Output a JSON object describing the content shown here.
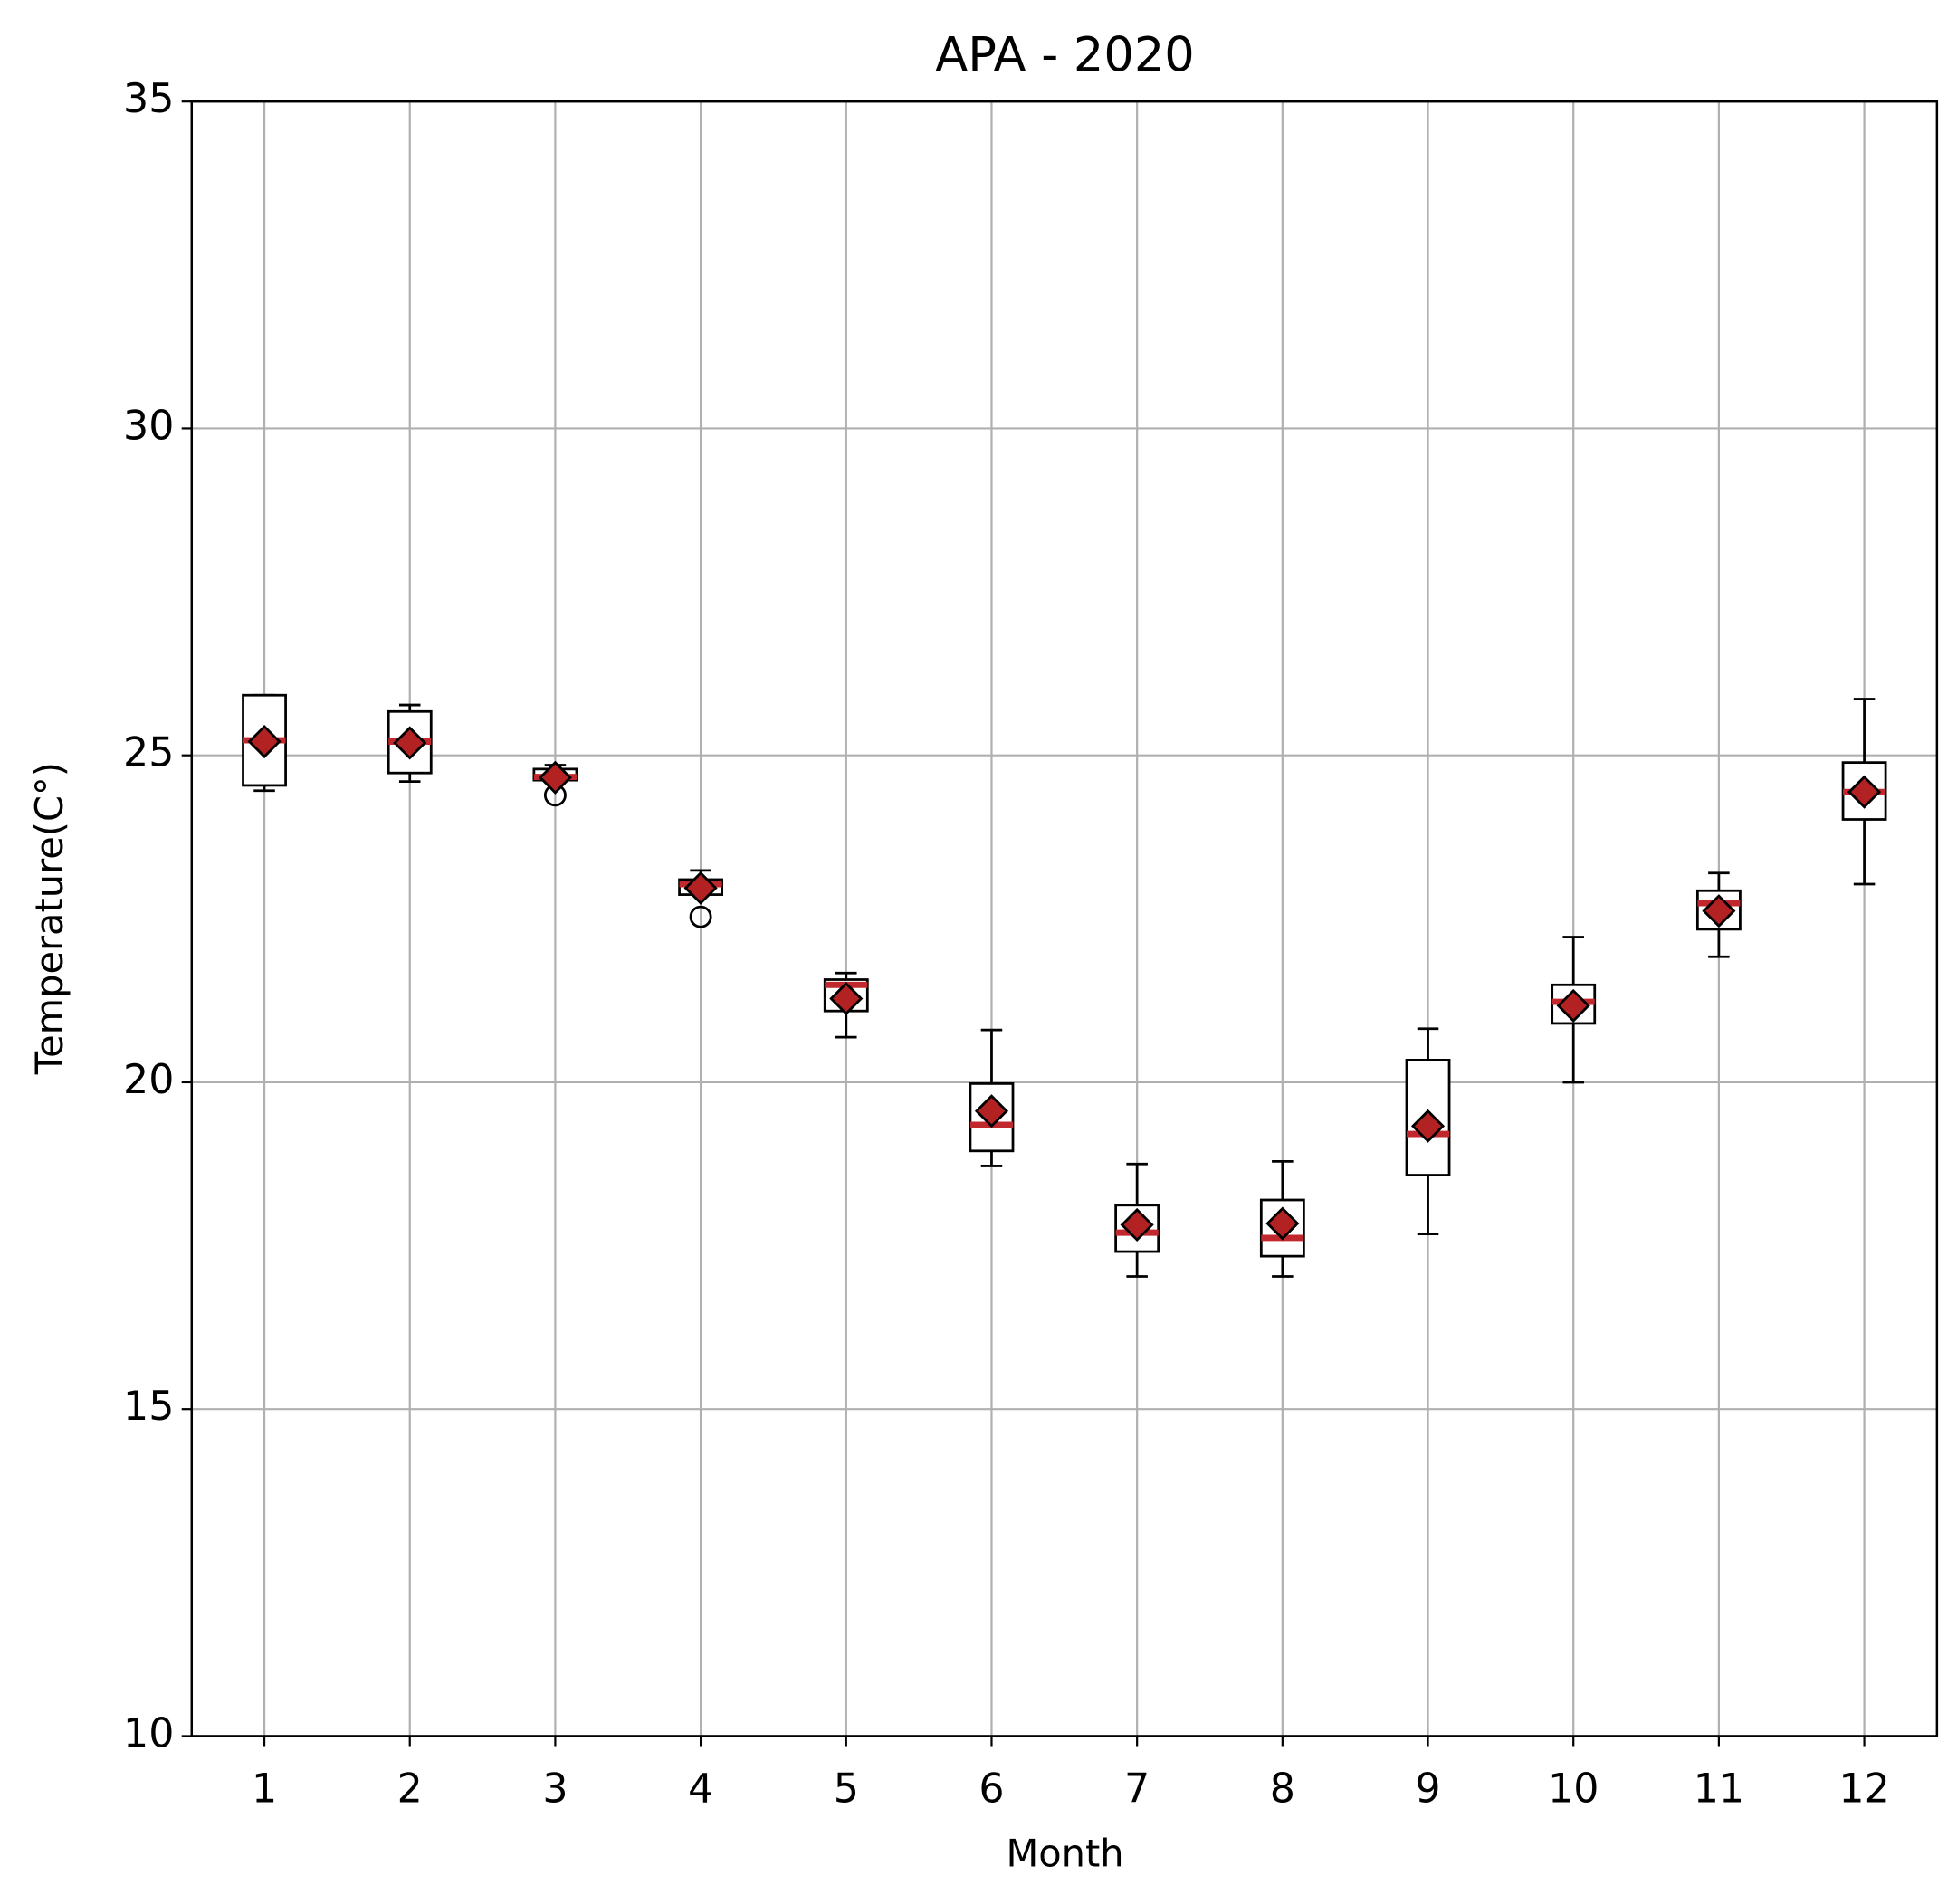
{
  "chart_data": {
    "type": "box",
    "title": "APA - 2020",
    "x_label": "Month",
    "y_label": "Temperature(C°)",
    "categories": [
      "1",
      "2",
      "3",
      "4",
      "5",
      "6",
      "7",
      "8",
      "9",
      "10",
      "11",
      "12"
    ],
    "min": [
      24.46,
      24.6,
      24.6,
      22.87,
      20.69,
      18.72,
      17.03,
      17.03,
      17.68,
      20.0,
      21.92,
      23.03
    ],
    "q1": [
      24.54,
      24.73,
      24.62,
      22.87,
      21.09,
      18.95,
      17.41,
      17.34,
      18.58,
      20.9,
      22.34,
      24.02
    ],
    "median": [
      25.23,
      25.21,
      24.67,
      23.03,
      21.49,
      19.35,
      17.7,
      17.62,
      19.21,
      21.23,
      22.74,
      24.44
    ],
    "q3": [
      25.92,
      25.67,
      24.79,
      23.1,
      21.57,
      19.98,
      18.12,
      18.2,
      20.34,
      21.49,
      22.93,
      24.89
    ],
    "max": [
      25.92,
      25.77,
      24.85,
      23.24,
      21.67,
      20.8,
      18.75,
      18.79,
      20.82,
      22.22,
      23.2,
      25.86
    ],
    "mean": [
      25.21,
      25.19,
      24.66,
      22.97,
      21.28,
      19.56,
      17.82,
      17.84,
      19.33,
      21.17,
      22.62,
      24.44
    ],
    "outliers": [
      [],
      [],
      [
        24.39
      ],
      [
        22.53
      ],
      [],
      [],
      [],
      [],
      [],
      [],
      [],
      []
    ],
    "box_color": "#000000",
    "median_color": "#c0282d",
    "mean_color": "#b22222",
    "ylim": [
      10,
      35
    ],
    "yticks": [
      10,
      15,
      20,
      25,
      30,
      35
    ],
    "grid": true
  }
}
